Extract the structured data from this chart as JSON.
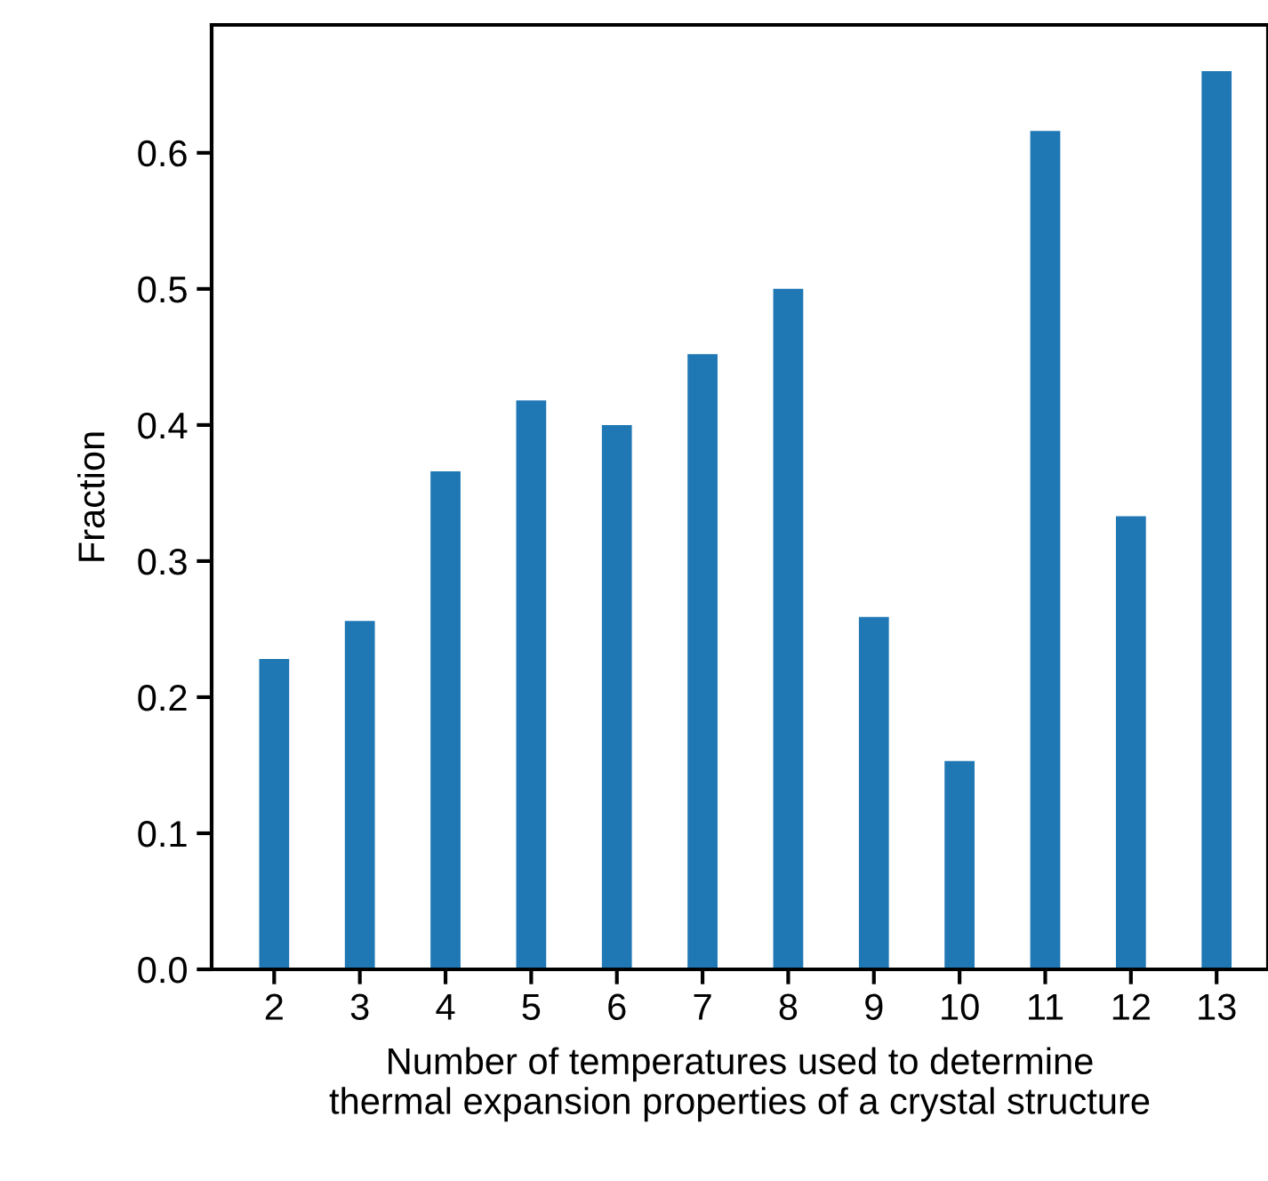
{
  "chart_data": {
    "type": "bar",
    "xlabel": "Number of temperatures used to determine\nthermal expansion properties of a crystal structure",
    "ylabel": "Fraction",
    "categories": [
      "2",
      "3",
      "4",
      "5",
      "6",
      "7",
      "8",
      "9",
      "10",
      "11",
      "12",
      "13"
    ],
    "values": [
      0.228,
      0.256,
      0.366,
      0.418,
      0.4,
      0.452,
      0.5,
      0.259,
      0.153,
      0.616,
      0.333,
      0.66
    ],
    "color": "#1f77b4",
    "ylim": [
      0,
      0.694
    ],
    "yticks": [
      {
        "value": 0,
        "label": "0.0"
      },
      0.1,
      0.2,
      0.3,
      0.4,
      0.5,
      0.6
    ],
    "grid": false
  }
}
